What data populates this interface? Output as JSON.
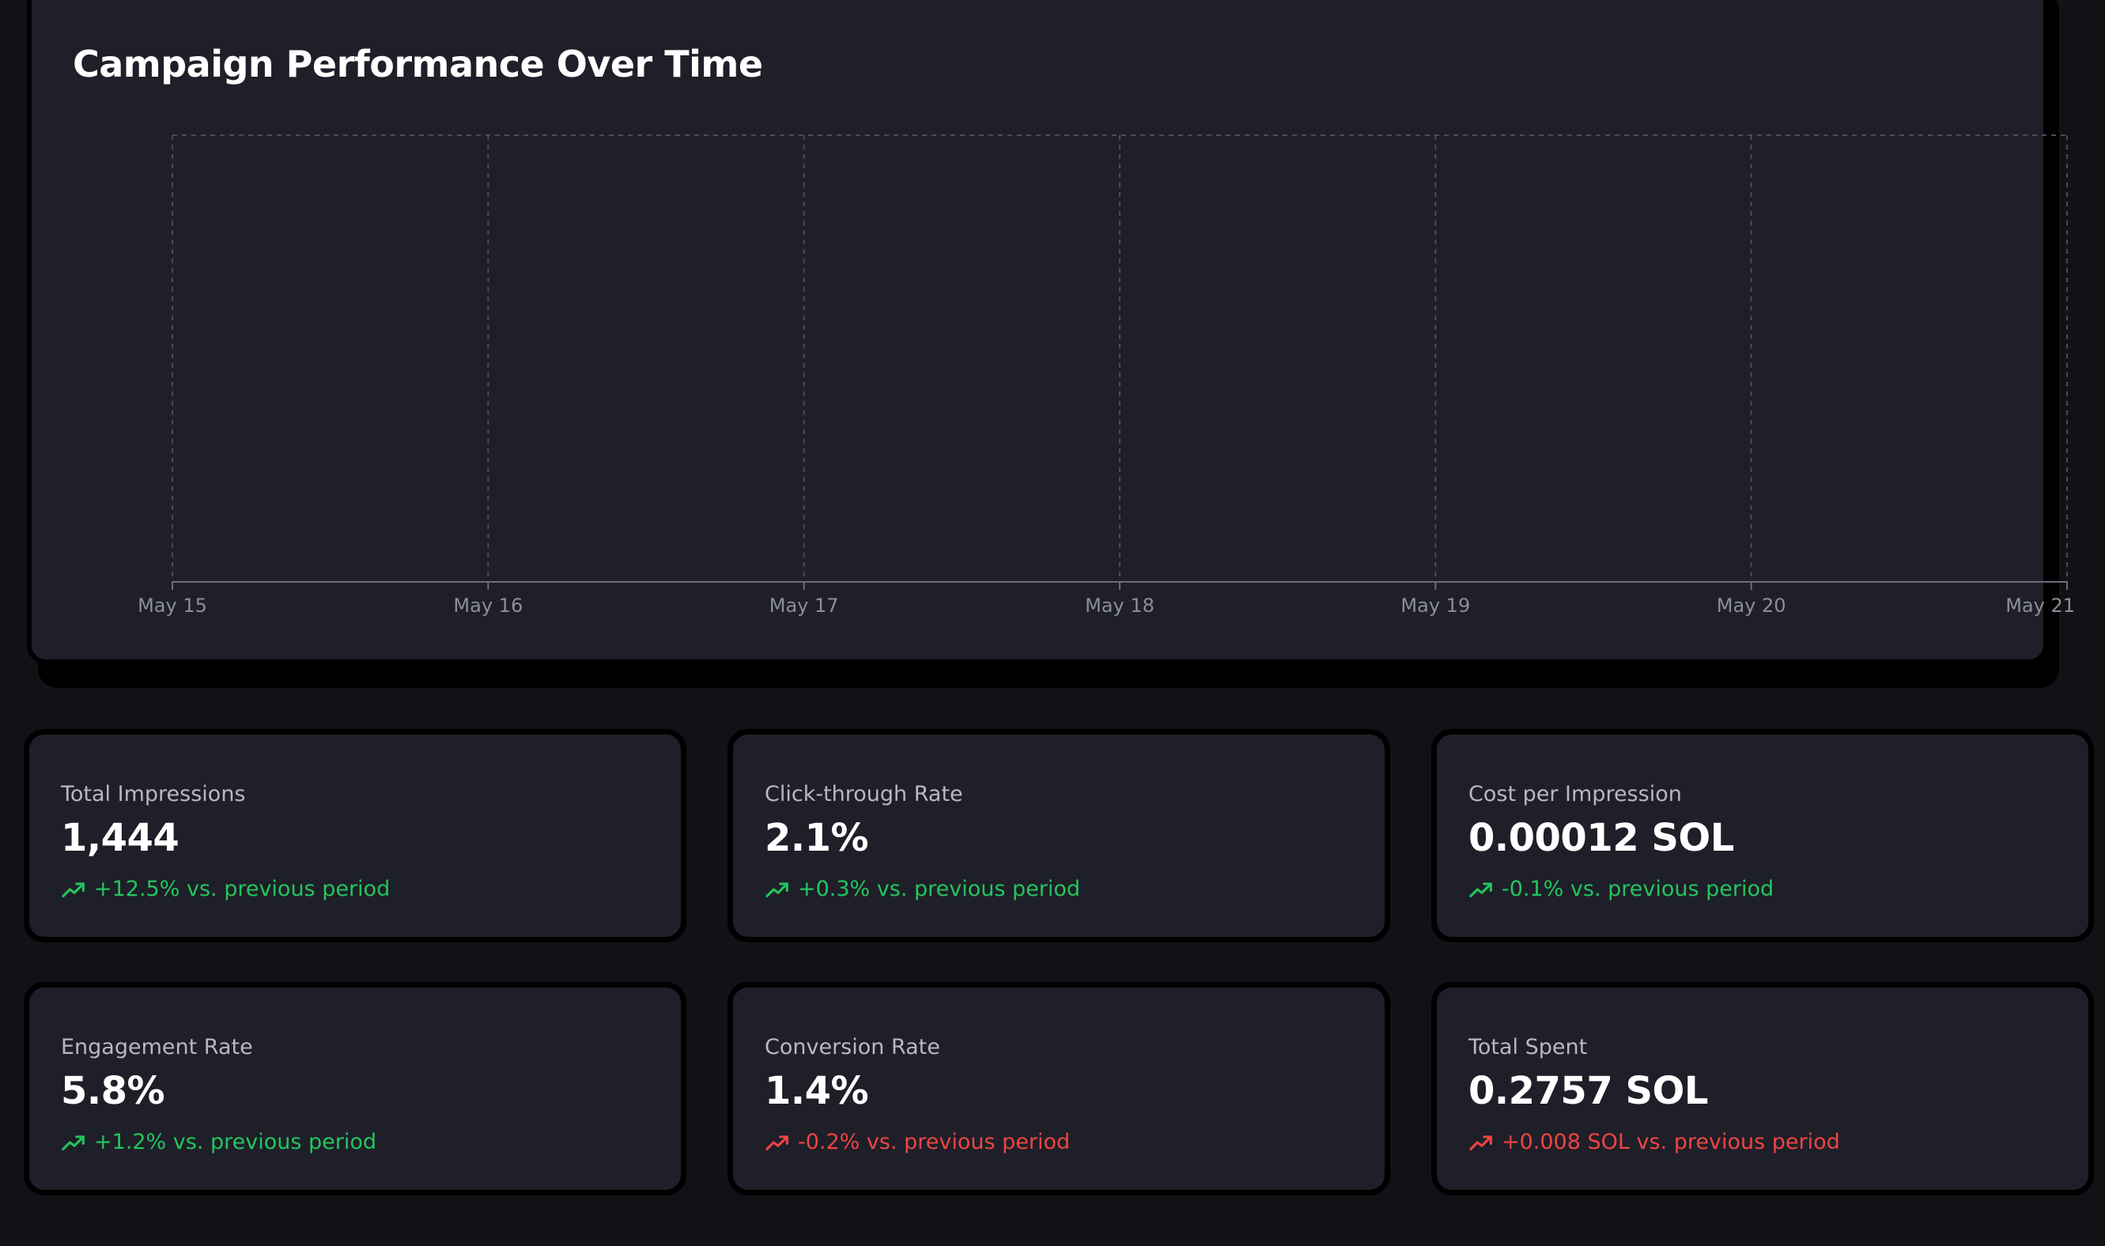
{
  "chart": {
    "title": "Campaign Performance Over Time"
  },
  "chart_data": {
    "type": "line",
    "title": "Campaign Performance Over Time",
    "x": [
      "May 15",
      "May 16",
      "May 17",
      "May 18",
      "May 19",
      "May 20",
      "May 21"
    ],
    "series": [],
    "grid": true
  },
  "metrics": [
    {
      "label": "Total Impressions",
      "value": "1,444",
      "change": "+12.5% vs. previous period",
      "trend": "positive"
    },
    {
      "label": "Click-through Rate",
      "value": "2.1%",
      "change": "+0.3% vs. previous period",
      "trend": "positive"
    },
    {
      "label": "Cost per Impression",
      "value": "0.00012 SOL",
      "change": "-0.1% vs. previous period",
      "trend": "positive"
    },
    {
      "label": "Engagement Rate",
      "value": "5.8%",
      "change": "+1.2% vs. previous period",
      "trend": "positive"
    },
    {
      "label": "Conversion Rate",
      "value": "1.4%",
      "change": "-0.2% vs. previous period",
      "trend": "negative"
    },
    {
      "label": "Total Spent",
      "value": "0.2757 SOL",
      "change": "+0.008 SOL vs. previous period",
      "trend": "negative"
    }
  ],
  "icons": {
    "change": "trending-up-icon"
  },
  "colors": {
    "positive": "#22c55e",
    "negative": "#ef4444",
    "panel": "#1e1f28",
    "background": "#111216"
  }
}
